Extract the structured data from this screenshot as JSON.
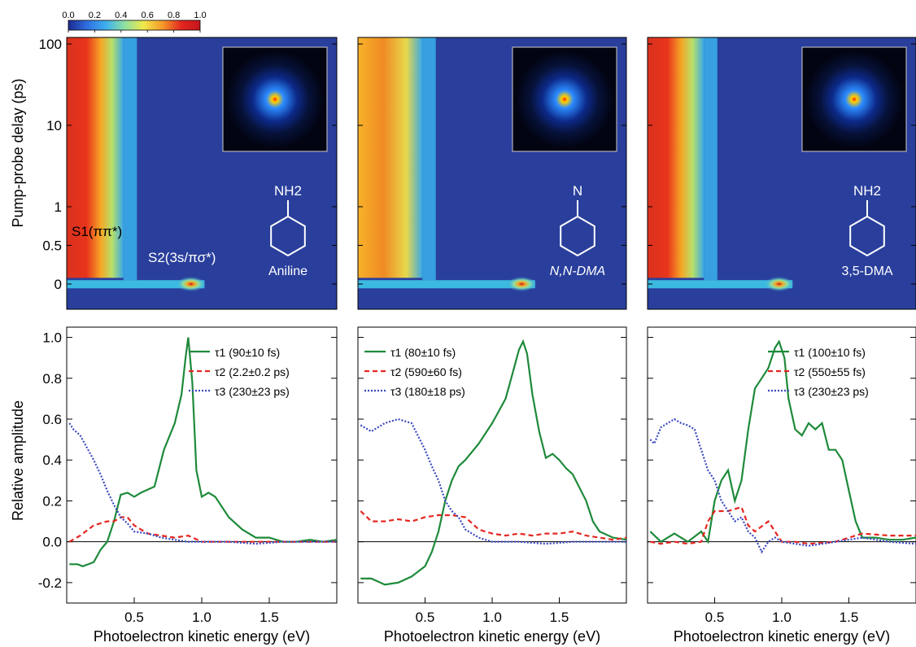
{
  "colorbar": {
    "ticks": [
      "0.0",
      "0.2",
      "0.4",
      "0.6",
      "0.8",
      "1.0"
    ],
    "stops": [
      "#1d2a8f",
      "#2f6fe0",
      "#3fb0f0",
      "#8fe0a0",
      "#f0e84a",
      "#f59a2a",
      "#e3261f",
      "#c4151c"
    ]
  },
  "heatmap_axis": {
    "ylabel": "Pump-probe delay (ps)",
    "ytick_labels": [
      "100",
      "10",
      "1",
      "0.5",
      "0"
    ]
  },
  "line_axis": {
    "xlabel": "Photoelectron kinetic energy (eV)",
    "ylabel": "Relative amplitude",
    "ytick_labels": [
      "1.0",
      "0.8",
      "0.6",
      "0.4",
      "0.2",
      "0.0",
      "-0.2"
    ],
    "xtick_labels": [
      "0.5",
      "1.0",
      "1.5"
    ]
  },
  "molecules": [
    {
      "name": "Aniline",
      "group_label": "NH2"
    },
    {
      "name": "N,N-DMA",
      "group_label": "N"
    },
    {
      "name": "3,5-DMA",
      "group_label": "NH2"
    }
  ],
  "state_labels": {
    "s1": "S1(ππ*)",
    "s2": "S2(3s/πσ*)"
  },
  "series_style": {
    "tau1": {
      "color": "#1e8a3a",
      "dash": "none"
    },
    "tau2": {
      "color": "#e52620",
      "dash": "6,4"
    },
    "tau3": {
      "color": "#3a48c0",
      "dash": "2,2"
    }
  },
  "chart_data": [
    {
      "type": "heatmap",
      "molecule": "Aniline",
      "ylabel": "Pump-probe delay (ps)",
      "yscale": "log-linear",
      "ylim": [
        -0.2,
        100
      ],
      "xlim": [
        0,
        2
      ],
      "features": {
        "s1_band_center_eV": 0.25,
        "s2_peak_eV": 0.92,
        "s2_peak_delay_ps": 0
      }
    },
    {
      "type": "heatmap",
      "molecule": "N,N-DMA",
      "ylim": [
        -0.2,
        100
      ],
      "xlim": [
        0,
        2
      ],
      "features": {
        "s1_band_center_eV": 0.3,
        "s2_peak_eV": 1.22,
        "s2_peak_delay_ps": 0
      }
    },
    {
      "type": "heatmap",
      "molecule": "3,5-DMA",
      "ylim": [
        -0.2,
        100
      ],
      "xlim": [
        0,
        2
      ],
      "features": {
        "s1_band_center_eV": 0.25,
        "s2_peak_eV": 0.98,
        "s2_peak_delay_ps": 0
      }
    },
    {
      "type": "line",
      "molecule": "Aniline",
      "xlabel": "Photoelectron kinetic energy (eV)",
      "ylabel": "Relative amplitude",
      "xlim": [
        0,
        2
      ],
      "ylim": [
        -0.3,
        1.05
      ],
      "legend": "top-right",
      "series": [
        {
          "key": "tau1",
          "name": "τ1 (90±10 fs)",
          "x": [
            0.02,
            0.08,
            0.12,
            0.2,
            0.25,
            0.3,
            0.35,
            0.4,
            0.45,
            0.5,
            0.55,
            0.65,
            0.72,
            0.8,
            0.85,
            0.88,
            0.9,
            0.93,
            0.96,
            1.0,
            1.05,
            1.1,
            1.2,
            1.3,
            1.4,
            1.5,
            1.6,
            1.7,
            1.8,
            1.9,
            2.0
          ],
          "y": [
            -0.11,
            -0.11,
            -0.12,
            -0.1,
            -0.04,
            0.0,
            0.1,
            0.23,
            0.24,
            0.22,
            0.24,
            0.27,
            0.45,
            0.58,
            0.72,
            0.9,
            1.0,
            0.78,
            0.35,
            0.22,
            0.24,
            0.22,
            0.12,
            0.06,
            0.02,
            0.02,
            0.0,
            0.0,
            0.01,
            0.0,
            0.01
          ]
        },
        {
          "key": "tau2",
          "name": "τ2 (2.2±0.2 ps)",
          "x": [
            0.02,
            0.1,
            0.2,
            0.3,
            0.35,
            0.4,
            0.45,
            0.5,
            0.6,
            0.7,
            0.8,
            0.9,
            1.0,
            1.2,
            1.4,
            1.6,
            1.8,
            2.0
          ],
          "y": [
            0.0,
            0.03,
            0.08,
            0.1,
            0.1,
            0.12,
            0.12,
            0.08,
            0.04,
            0.03,
            0.02,
            0.03,
            0.0,
            0.0,
            0.0,
            0.0,
            0.0,
            0.0
          ]
        },
        {
          "key": "tau3",
          "name": "τ3 (230±23 ps)",
          "x": [
            0.02,
            0.05,
            0.1,
            0.15,
            0.2,
            0.25,
            0.3,
            0.35,
            0.4,
            0.45,
            0.5,
            0.6,
            0.7,
            0.8,
            0.9,
            1.0,
            1.2,
            1.4,
            1.6,
            1.8,
            2.0
          ],
          "y": [
            0.58,
            0.55,
            0.52,
            0.46,
            0.4,
            0.33,
            0.25,
            0.18,
            0.12,
            0.09,
            0.05,
            0.04,
            0.02,
            0.01,
            0.0,
            0.0,
            0.0,
            -0.01,
            0.0,
            0.0,
            0.0
          ]
        }
      ]
    },
    {
      "type": "line",
      "molecule": "N,N-DMA",
      "xlim": [
        0,
        2
      ],
      "ylim": [
        -0.3,
        1.05
      ],
      "legend": "top-left",
      "series": [
        {
          "key": "tau1",
          "name": "τ1 (80±10 fs)",
          "x": [
            0.02,
            0.1,
            0.2,
            0.3,
            0.4,
            0.5,
            0.55,
            0.6,
            0.65,
            0.7,
            0.75,
            0.8,
            0.9,
            1.0,
            1.05,
            1.1,
            1.15,
            1.2,
            1.23,
            1.26,
            1.3,
            1.35,
            1.4,
            1.45,
            1.5,
            1.55,
            1.6,
            1.7,
            1.75,
            1.8,
            1.9,
            2.0
          ],
          "y": [
            -0.18,
            -0.18,
            -0.21,
            -0.2,
            -0.17,
            -0.12,
            -0.05,
            0.05,
            0.2,
            0.3,
            0.37,
            0.4,
            0.48,
            0.58,
            0.64,
            0.7,
            0.82,
            0.94,
            0.98,
            0.92,
            0.72,
            0.54,
            0.41,
            0.43,
            0.4,
            0.36,
            0.33,
            0.2,
            0.1,
            0.05,
            0.02,
            0.01
          ]
        },
        {
          "key": "tau2",
          "name": "τ2 (590±60 fs)",
          "x": [
            0.02,
            0.1,
            0.2,
            0.3,
            0.4,
            0.5,
            0.6,
            0.7,
            0.8,
            0.9,
            1.0,
            1.1,
            1.2,
            1.3,
            1.4,
            1.5,
            1.6,
            1.7,
            1.8,
            1.9,
            2.0
          ],
          "y": [
            0.15,
            0.1,
            0.1,
            0.11,
            0.1,
            0.12,
            0.13,
            0.13,
            0.12,
            0.06,
            0.04,
            0.03,
            0.04,
            0.03,
            0.04,
            0.04,
            0.05,
            0.03,
            0.02,
            0.01,
            0.02
          ]
        },
        {
          "key": "tau3",
          "name": "τ3 (180±18 ps)",
          "x": [
            0.02,
            0.1,
            0.2,
            0.3,
            0.4,
            0.5,
            0.55,
            0.6,
            0.65,
            0.7,
            0.75,
            0.8,
            0.9,
            1.0,
            1.2,
            1.4,
            1.6,
            1.8,
            2.0
          ],
          "y": [
            0.57,
            0.54,
            0.58,
            0.6,
            0.58,
            0.45,
            0.37,
            0.3,
            0.2,
            0.15,
            0.12,
            0.06,
            0.02,
            0.0,
            0.0,
            -0.01,
            0.0,
            0.0,
            0.0
          ]
        }
      ]
    },
    {
      "type": "line",
      "molecule": "3,5-DMA",
      "xlim": [
        0,
        2
      ],
      "ylim": [
        -0.3,
        1.05
      ],
      "legend": "top-right",
      "series": [
        {
          "key": "tau1",
          "name": "τ1 (100±10 fs)",
          "x": [
            0.02,
            0.1,
            0.2,
            0.3,
            0.4,
            0.45,
            0.5,
            0.55,
            0.6,
            0.65,
            0.7,
            0.75,
            0.8,
            0.85,
            0.9,
            0.95,
            0.98,
            1.02,
            1.05,
            1.1,
            1.15,
            1.2,
            1.25,
            1.3,
            1.35,
            1.4,
            1.45,
            1.5,
            1.55,
            1.6,
            1.7,
            1.8,
            1.9,
            2.0
          ],
          "y": [
            0.05,
            0.0,
            0.04,
            0.0,
            0.05,
            0.0,
            0.2,
            0.3,
            0.35,
            0.2,
            0.3,
            0.55,
            0.75,
            0.8,
            0.85,
            0.95,
            0.98,
            0.9,
            0.7,
            0.55,
            0.52,
            0.58,
            0.55,
            0.58,
            0.45,
            0.45,
            0.4,
            0.25,
            0.1,
            0.02,
            0.02,
            0.01,
            0.01,
            0.02
          ]
        },
        {
          "key": "tau2",
          "name": "τ2 (550±55 fs)",
          "x": [
            0.02,
            0.1,
            0.2,
            0.3,
            0.4,
            0.45,
            0.5,
            0.6,
            0.7,
            0.75,
            0.8,
            0.9,
            1.0,
            1.1,
            1.2,
            1.4,
            1.6,
            1.8,
            2.0
          ],
          "y": [
            0.0,
            -0.01,
            0.0,
            -0.01,
            0.0,
            0.1,
            0.15,
            0.15,
            0.17,
            0.08,
            0.05,
            0.1,
            0.0,
            0.0,
            -0.01,
            0.0,
            0.04,
            0.03,
            0.03
          ]
        },
        {
          "key": "tau3",
          "name": "τ3 (230±23 ps)",
          "x": [
            0.02,
            0.05,
            0.1,
            0.15,
            0.2,
            0.25,
            0.3,
            0.35,
            0.4,
            0.45,
            0.5,
            0.55,
            0.6,
            0.65,
            0.7,
            0.75,
            0.8,
            0.85,
            0.9,
            0.95,
            1.0,
            1.2,
            1.4,
            1.6,
            1.8,
            2.0
          ],
          "y": [
            0.5,
            0.48,
            0.56,
            0.58,
            0.6,
            0.58,
            0.57,
            0.55,
            0.45,
            0.35,
            0.3,
            0.2,
            0.15,
            0.1,
            0.12,
            0.05,
            0.02,
            -0.05,
            0.0,
            0.02,
            0.0,
            -0.02,
            0.0,
            0.02,
            0.0,
            -0.01
          ]
        }
      ]
    }
  ]
}
